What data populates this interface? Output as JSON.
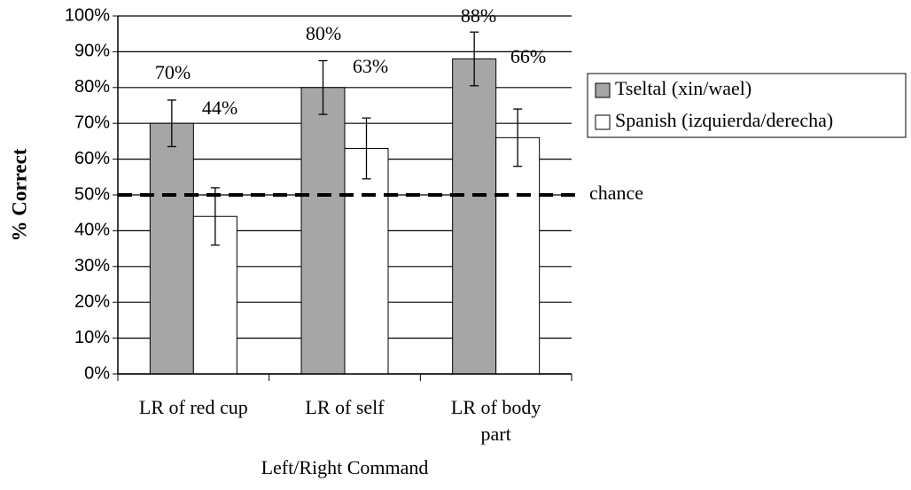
{
  "chart_data": {
    "type": "bar",
    "y_label": "% Correct",
    "x_label": "Left/Right Command",
    "categories": [
      "LR of red cup",
      "LR of self",
      "LR of body part"
    ],
    "series": [
      {
        "name": "Tseltal (xin/wael)",
        "color": "#a6a6a6",
        "values": [
          70,
          80,
          88
        ],
        "value_labels": [
          "70%",
          "80%",
          "88%"
        ],
        "errors": [
          6.5,
          7.5,
          7.5
        ]
      },
      {
        "name": "Spanish (izquierda/derecha)",
        "color": "#ffffff",
        "values": [
          44,
          63,
          66
        ],
        "value_labels": [
          "44%",
          "63%",
          "66%"
        ],
        "errors": [
          8,
          8.5,
          8
        ]
      }
    ],
    "reference_line": {
      "value": 50,
      "label": "chance"
    },
    "ylim": [
      0,
      100
    ],
    "yticks": [
      {
        "value": 0,
        "label": "0%"
      },
      {
        "value": 10,
        "label": "10%"
      },
      {
        "value": 20,
        "label": "20%"
      },
      {
        "value": 30,
        "label": "30%"
      },
      {
        "value": 40,
        "label": "40%"
      },
      {
        "value": 50,
        "label": "50%"
      },
      {
        "value": 60,
        "label": "60%"
      },
      {
        "value": 70,
        "label": "70%"
      },
      {
        "value": 80,
        "label": "80%"
      },
      {
        "value": 90,
        "label": "90%"
      },
      {
        "value": 100,
        "label": "100%"
      }
    ],
    "grid": true,
    "legend": "right"
  }
}
